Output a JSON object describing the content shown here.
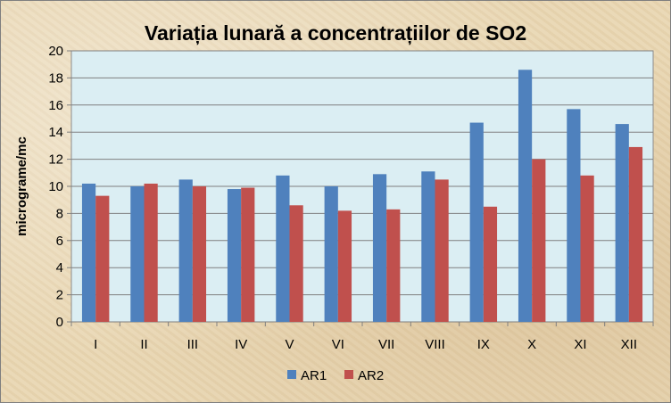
{
  "chart_data": {
    "type": "bar",
    "title": "Variația lunară a concentrațiilor de SO2",
    "xlabel": "",
    "ylabel": "micrograme/mc",
    "ylim": [
      0,
      20
    ],
    "y_ticks": [
      0,
      2,
      4,
      6,
      8,
      10,
      12,
      14,
      16,
      18,
      20
    ],
    "grid": true,
    "legend_position": "bottom",
    "categories": [
      "I",
      "II",
      "III",
      "IV",
      "V",
      "VI",
      "VII",
      "VIII",
      "IX",
      "X",
      "XI",
      "XII"
    ],
    "series": [
      {
        "name": "AR1",
        "color": "#4f81bd",
        "values": [
          10.2,
          10.0,
          10.5,
          9.8,
          10.8,
          10.0,
          10.9,
          11.1,
          14.7,
          18.6,
          15.7,
          14.6
        ]
      },
      {
        "name": "AR2",
        "color": "#c0504d",
        "values": [
          9.3,
          10.2,
          10.0,
          9.9,
          8.6,
          8.2,
          8.3,
          10.5,
          8.5,
          12.0,
          10.8,
          12.9
        ]
      }
    ],
    "plot_background": "#dbeef3"
  }
}
